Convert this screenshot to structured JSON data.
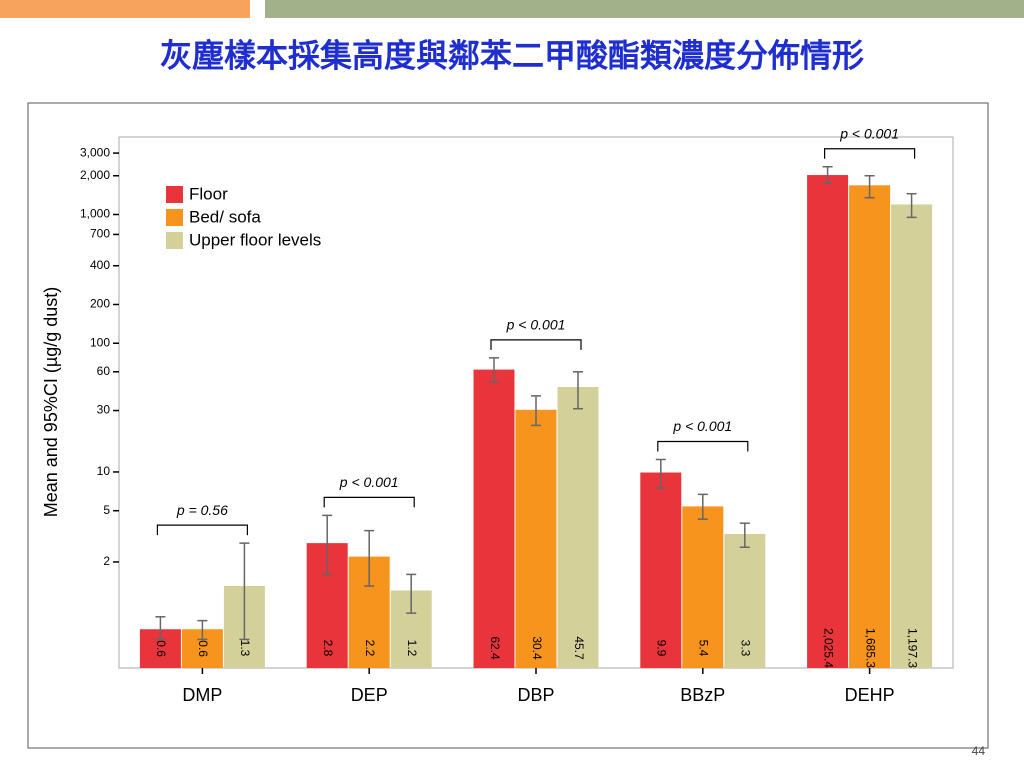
{
  "page_number": "44",
  "chart_data": {
    "type": "bar",
    "title": "灰塵樣本採集高度與鄰苯二甲酸酯類濃度分佈情形",
    "y_label": "Mean and 95%CI (µg/g dust)",
    "categories": [
      "DMP",
      "DEP",
      "DBP",
      "BBzP",
      "DEHP"
    ],
    "log_scale": true,
    "ylim": [
      0.3,
      4000
    ],
    "yticks": [
      2,
      5,
      10,
      30,
      60,
      100,
      200,
      400,
      700,
      {
        "value": 1000,
        "label": "1,000"
      },
      {
        "value": 2000,
        "label": "2,000"
      },
      {
        "value": 3000,
        "label": "3,000"
      }
    ],
    "legend": "upper left",
    "series": [
      {
        "name": "Floor",
        "color": "#e8343a",
        "values": [
          0.6,
          2.8,
          62.4,
          9.9,
          2025.4
        ],
        "value_labels": [
          "0.6",
          "2.8",
          "62.4",
          "9.9",
          "2,025.4"
        ],
        "ci_low": [
          0.5,
          1.6,
          50,
          7.5,
          1750
        ],
        "ci_high": [
          0.75,
          4.6,
          77,
          12.5,
          2350
        ]
      },
      {
        "name": "Bed/ sofa",
        "color": "#f7941d",
        "values": [
          0.6,
          2.2,
          30.4,
          5.4,
          1685.3
        ],
        "value_labels": [
          "0.6",
          "2.2",
          "30.4",
          "5.4",
          "1,685.3"
        ],
        "ci_low": [
          0.5,
          1.3,
          23,
          4.3,
          1350
        ],
        "ci_high": [
          0.7,
          3.5,
          39,
          6.7,
          2000
        ]
      },
      {
        "name": "Upper floor levels",
        "color": "#d4d09a",
        "values": [
          1.3,
          1.2,
          45.7,
          3.3,
          1197.3
        ],
        "value_labels": [
          "1.3",
          "1.2",
          "45.7",
          "3.3",
          "1,197.3"
        ],
        "ci_low": [
          0.5,
          0.8,
          31,
          2.6,
          950
        ],
        "ci_high": [
          2.8,
          1.6,
          60,
          4.0,
          1450
        ]
      }
    ],
    "annotations": [
      "p = 0.56",
      "p < 0.001",
      "p < 0.001",
      "p < 0.001",
      "p < 0.001"
    ]
  }
}
